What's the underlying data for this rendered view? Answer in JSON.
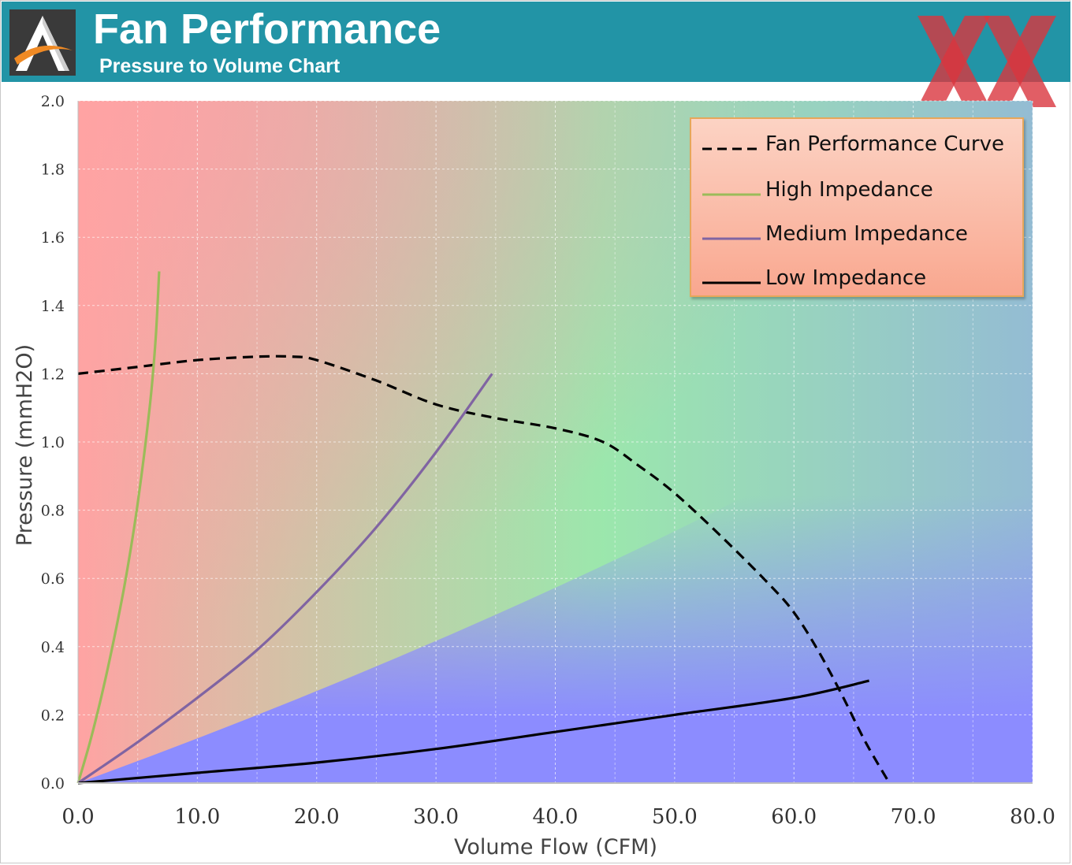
{
  "header": {
    "title": "Fan Performance",
    "subtitle": "Pressure to Volume Chart",
    "logo_icon": "triangle-a-swoosh-logo",
    "brand_icon": "double-x-logo",
    "background_color": "#2294a6"
  },
  "chart_data": {
    "type": "line",
    "xlabel": "Volume Flow (CFM)",
    "ylabel": "Pressure (mmH2O)",
    "xlim": [
      0,
      80
    ],
    "ylim": [
      0,
      2.0
    ],
    "x_ticks": [
      "0.0",
      "10.0",
      "20.0",
      "30.0",
      "40.0",
      "50.0",
      "60.0",
      "70.0",
      "80.0"
    ],
    "y_ticks": [
      "0.0",
      "0.2",
      "0.4",
      "0.6",
      "0.8",
      "1.0",
      "1.2",
      "1.4",
      "1.6",
      "1.8",
      "2.0"
    ],
    "grid": true,
    "legend_position": "top-right",
    "background": "gradient from red (top-left) through green (center) to blue (bottom-right)",
    "series": [
      {
        "name": "Fan Performance Curve",
        "color": "#000000",
        "style": "dashed",
        "x": [
          0,
          5,
          10,
          15,
          18,
          20,
          25,
          30,
          35,
          40,
          44,
          47,
          50,
          54,
          58,
          60,
          62,
          64,
          66,
          68
        ],
        "y": [
          1.2,
          1.22,
          1.24,
          1.25,
          1.25,
          1.24,
          1.18,
          1.11,
          1.07,
          1.04,
          1.0,
          0.93,
          0.85,
          0.72,
          0.58,
          0.5,
          0.39,
          0.26,
          0.12,
          0.0
        ]
      },
      {
        "name": "High Impedance",
        "color": "#9bbb59",
        "style": "solid",
        "x": [
          0,
          1,
          2,
          3,
          4,
          5,
          6,
          6.5,
          6.8
        ],
        "y": [
          0,
          0.12,
          0.26,
          0.42,
          0.6,
          0.82,
          1.1,
          1.3,
          1.5
        ]
      },
      {
        "name": "Medium Impedance",
        "color": "#8064a2",
        "style": "solid",
        "x": [
          0,
          5,
          10,
          15,
          20,
          25,
          30,
          34.7
        ],
        "y": [
          0,
          0.12,
          0.25,
          0.39,
          0.56,
          0.75,
          0.97,
          1.2
        ]
      },
      {
        "name": "Low Impedance",
        "color": "#000000",
        "style": "solid",
        "x": [
          0,
          10,
          20,
          30,
          40,
          50,
          60,
          66.3
        ],
        "y": [
          0,
          0.03,
          0.06,
          0.1,
          0.15,
          0.2,
          0.25,
          0.3
        ]
      }
    ]
  }
}
